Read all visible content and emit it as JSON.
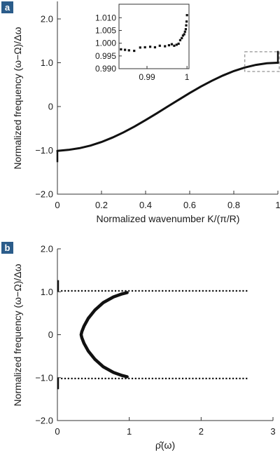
{
  "chart_data": [
    {
      "panel_label": "a",
      "type": "line",
      "xlabel": "Normalized wavenumber K/(π/R)",
      "ylabel": "Normalized frequency (ω−Ω)/Δω",
      "xlim": [
        0,
        1
      ],
      "ylim": [
        -2.0,
        2.4
      ],
      "x_ticks": [
        0,
        0.2,
        0.4,
        0.6,
        0.8,
        1
      ],
      "x_tick_labels": [
        "0",
        "0.2",
        "0.4",
        "0.6",
        "0.8",
        "1"
      ],
      "y_ticks": [
        -2.0,
        -1.0,
        0,
        1.0,
        2.0
      ],
      "y_tick_labels": [
        "−2.0",
        "−1.0",
        "0",
        "1.0",
        "2.0"
      ],
      "grid": false,
      "curve": {
        "x": [
          0,
          0.05,
          0.1,
          0.15,
          0.2,
          0.25,
          0.3,
          0.35,
          0.4,
          0.45,
          0.5,
          0.55,
          0.6,
          0.65,
          0.7,
          0.75,
          0.8,
          0.85,
          0.9,
          0.95,
          1.0
        ],
        "y": [
          -1.012,
          -0.988,
          -0.951,
          -0.891,
          -0.809,
          -0.707,
          -0.588,
          -0.454,
          -0.309,
          -0.156,
          0.0,
          0.156,
          0.309,
          0.454,
          0.588,
          0.707,
          0.809,
          0.891,
          0.951,
          0.988,
          1.0
        ]
      },
      "edge_spikes": [
        {
          "x": 0,
          "y_from": -1.0,
          "y_to": -1.27
        },
        {
          "x": 1,
          "y_from": 1.0,
          "y_to": 1.27
        }
      ],
      "highlight_box": {
        "xlim": [
          0.85,
          1.02
        ],
        "ylim": [
          0.8,
          1.25
        ],
        "style": "dashed"
      },
      "inset": {
        "xlim": [
          0.983,
          1.0005
        ],
        "ylim": [
          0.99,
          1.012
        ],
        "x_ticks": [
          0.99,
          1
        ],
        "x_tick_labels": [
          "0.99",
          "1"
        ],
        "y_ticks": [
          0.99,
          0.995,
          1.0,
          1.005,
          1.01
        ],
        "y_tick_labels": [
          "0.990",
          "0.995",
          "1.000",
          "1.005",
          "1.010"
        ],
        "points": {
          "x": [
            0.9835,
            0.9845,
            0.9855,
            0.9868,
            0.9883,
            0.9895,
            0.9908,
            0.992,
            0.9932,
            0.9945,
            0.9955,
            0.9962,
            0.9968,
            0.9974,
            0.9979,
            0.9983,
            0.9987,
            0.999,
            0.9993,
            0.9995,
            0.9997,
            0.9998,
            0.9999,
            1.0
          ],
          "y": [
            0.9976,
            0.9974,
            0.9972,
            0.997,
            0.9983,
            0.9984,
            0.9986,
            0.9984,
            0.999,
            0.9988,
            0.9992,
            0.9996,
            0.999,
            0.9994,
            0.9998,
            1.0012,
            1.002,
            1.003,
            1.0035,
            1.0045,
            1.0055,
            1.007,
            1.0085,
            1.011
          ]
        }
      }
    },
    {
      "panel_label": "b",
      "type": "scatter",
      "xlabel": "ρ̂(ω)",
      "ylabel": "Normalized frequency (ω−Ω)/Δω",
      "xlim": [
        0,
        3
      ],
      "ylim": [
        -2.0,
        2.0
      ],
      "x_ticks": [
        0,
        1,
        2,
        3
      ],
      "x_tick_labels": [
        "0",
        "1",
        "2",
        "3"
      ],
      "y_ticks": [
        -2.0,
        -1.0,
        0,
        1.0,
        2.0
      ],
      "y_tick_labels": [
        "−2.0",
        "−1.0",
        "0",
        "1.0",
        "2.0"
      ],
      "grid": false,
      "density_curve": {
        "description_free": true,
        "x": [
          0.97,
          0.9,
          0.78,
          0.64,
          0.52,
          0.43,
          0.37,
          0.34,
          0.33,
          0.34,
          0.37,
          0.43,
          0.52,
          0.64,
          0.78,
          0.9,
          0.97
        ],
        "y": [
          0.98,
          0.95,
          0.88,
          0.75,
          0.57,
          0.38,
          0.2,
          0.07,
          0.0,
          -0.07,
          -0.2,
          -0.38,
          -0.57,
          -0.75,
          -0.88,
          -0.95,
          -0.98
        ]
      },
      "flat_band_tails": {
        "y_levels": [
          1.02,
          -1.02
        ],
        "x_range": [
          0.05,
          2.66
        ]
      },
      "edge_spikes": [
        {
          "x": 0,
          "y_from": 1.0,
          "y_to": 1.27
        },
        {
          "x": 0,
          "y_from": -1.0,
          "y_to": -1.27
        }
      ]
    }
  ]
}
